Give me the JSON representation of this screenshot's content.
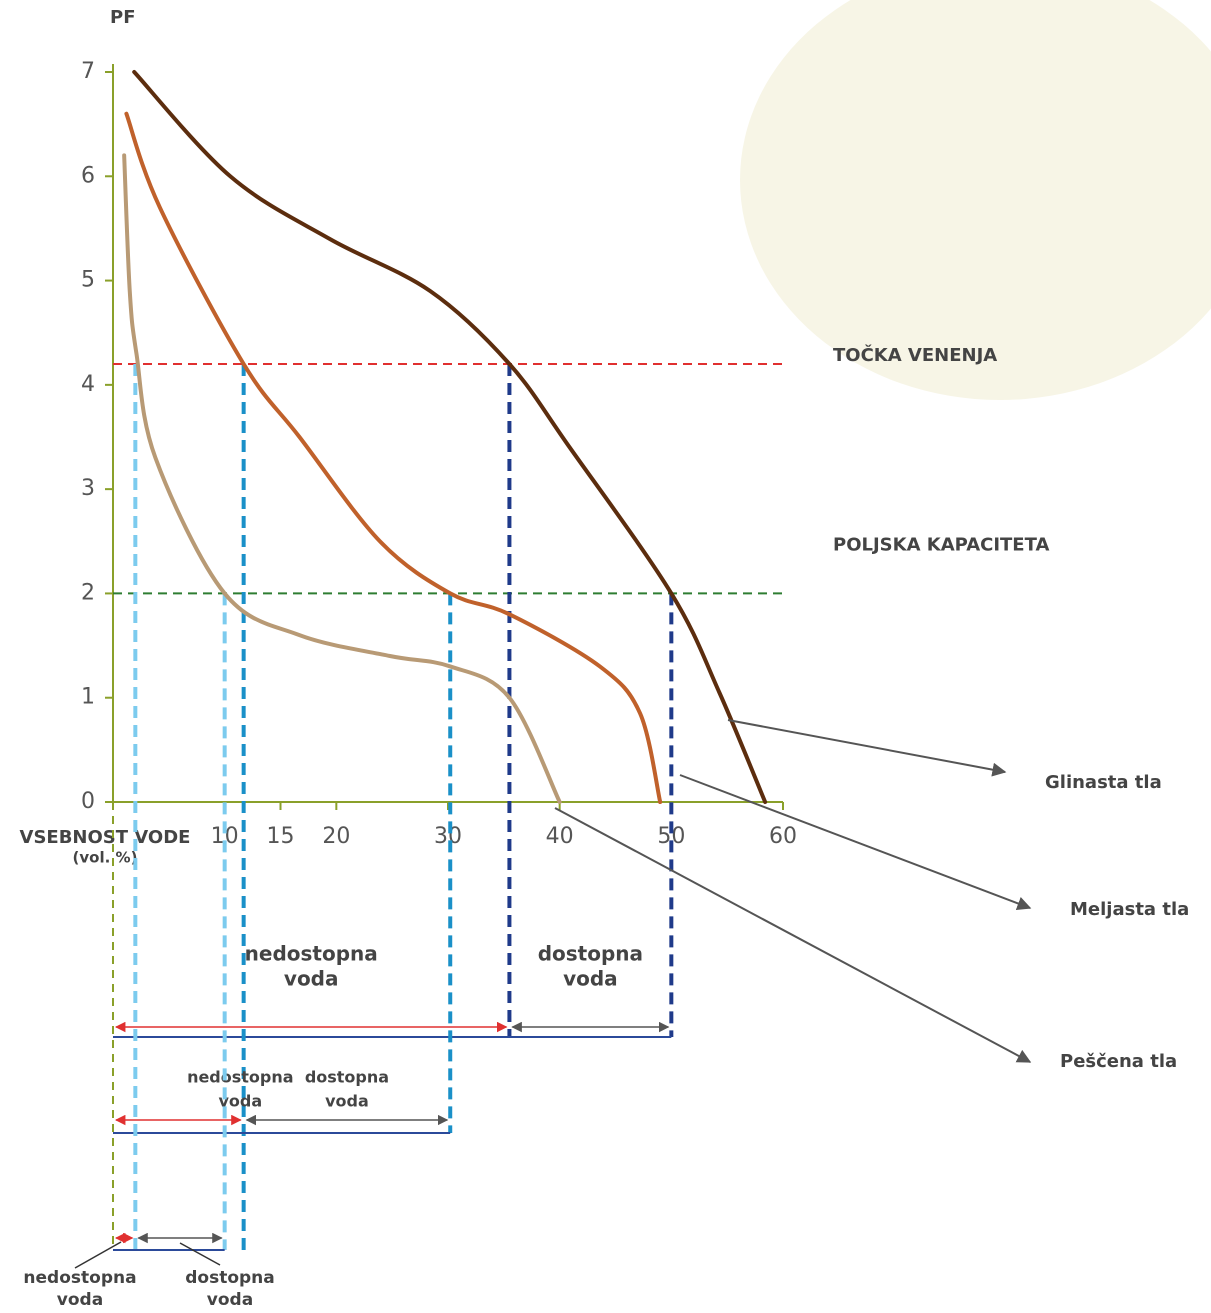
{
  "chart_data": {
    "type": "line",
    "y_label": "PF",
    "x_label": [
      "VSEBNOST VODE",
      "(vol. %)"
    ],
    "xlim": [
      0,
      60
    ],
    "xticks": [
      10,
      15,
      20,
      30,
      40,
      50,
      60
    ],
    "ylim": [
      0,
      7
    ],
    "yticks": [
      0,
      1,
      2,
      3,
      4,
      5,
      6,
      7
    ],
    "axis_color": "#8aa02a",
    "series": [
      {
        "name": "Glinasta tla",
        "color": "#5c2d0e",
        "x": [
          1.9,
          10.5,
          19.4,
          28.4,
          35.5,
          40.9,
          50,
          54.3,
          58.4
        ],
        "values": [
          7,
          6,
          5.4,
          4.9,
          4.2,
          3.4,
          2,
          1.05,
          0
        ]
      },
      {
        "name": "Meljasta tla",
        "color": "#c0612b",
        "x": [
          1.2,
          4.2,
          11.7,
          16.7,
          23.9,
          30.2,
          35.5,
          43.6,
          47.2,
          49
        ],
        "values": [
          6.6,
          5.7,
          4.2,
          3.5,
          2.5,
          2,
          1.8,
          1.3,
          0.85,
          0
        ]
      },
      {
        "name": "Peščena tla",
        "color": "#b89a75",
        "x": [
          1,
          1.5,
          2.1,
          3.8,
          10,
          16.7,
          24.8,
          30.2,
          35.5,
          40
        ],
        "values": [
          6.2,
          4.9,
          4.3,
          3.3,
          2,
          1.6,
          1.4,
          1.3,
          1,
          0
        ]
      }
    ],
    "reference_lines": [
      {
        "value": 4.2,
        "label": "TOČKA VENENJA",
        "color": "#e03030"
      },
      {
        "value": 2,
        "label": "POLJSKA KAPACITETA",
        "color": "#2e7d32"
      }
    ],
    "water_ranges": [
      {
        "wilting_point": 35.5,
        "field_capacity": 50,
        "color": "#1f3a8a",
        "unavailable": [
          "nedostopna",
          "voda"
        ],
        "available": [
          "dostopna",
          "voda"
        ]
      },
      {
        "wilting_point": 11.7,
        "field_capacity": 30.2,
        "color": "#1a90c8",
        "unavailable": [
          "nedostopna",
          "voda"
        ],
        "available": [
          "dostopna",
          "voda"
        ]
      },
      {
        "wilting_point": 2,
        "field_capacity": 10,
        "color": "#7ccbee",
        "unavailable": [
          "nedostopna",
          "voda"
        ],
        "available": [
          "dostopna",
          "voda"
        ]
      }
    ]
  }
}
